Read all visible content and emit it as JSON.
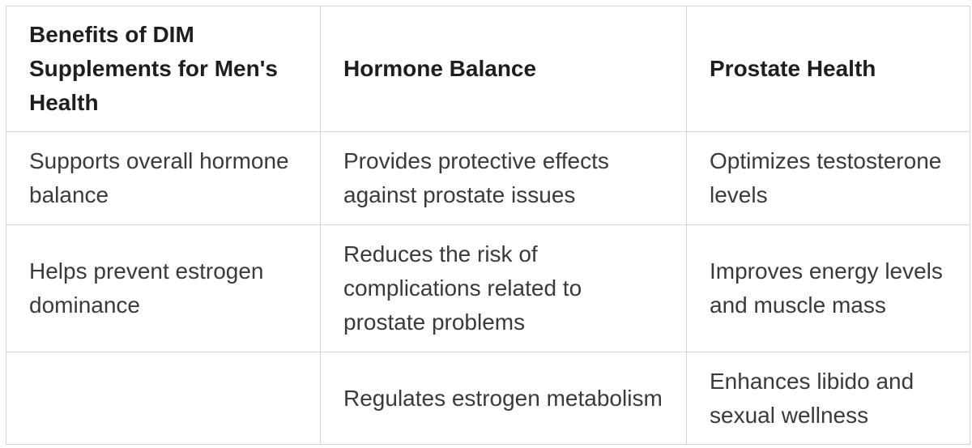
{
  "table": {
    "header": [
      "Benefits of DIM Supplements for Men's Health",
      "Hormone Balance",
      "Prostate Health"
    ],
    "rows": [
      [
        "Supports overall hormone balance",
        "Provides protective effects against prostate issues",
        "Optimizes testosterone levels"
      ],
      [
        "Helps prevent estrogen dominance",
        "Reduces the risk of complications related to prostate problems",
        "Improves energy levels and muscle mass"
      ],
      [
        null,
        "Regulates estrogen metabolism",
        "Enhances libido and sexual wellness"
      ]
    ]
  }
}
